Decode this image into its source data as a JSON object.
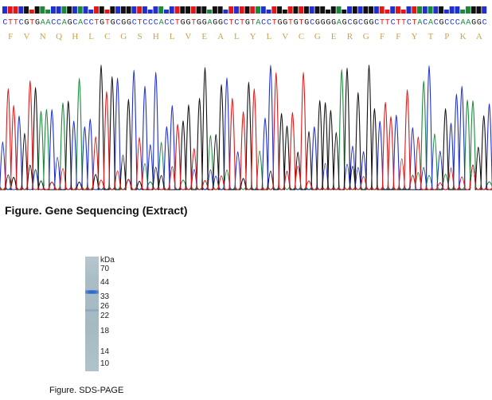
{
  "sequencing": {
    "bases": "CTTCGTGAACCAGCACCTGTGCGGCTCCCACCTGGTGGAGGCTCTGTACCTGGTGTGCGGGGAGCGCGGCTTCTTCTACACGCCCAAGGC",
    "amino_acids": [
      "F",
      "V",
      "N",
      "Q",
      "H",
      "L",
      "C",
      "G",
      "S",
      "H",
      "L",
      "V",
      "E",
      "A",
      "L",
      "Y",
      "L",
      "V",
      "C",
      "G",
      "E",
      "R",
      "G",
      "F",
      "F",
      "Y",
      "T",
      "P",
      "K",
      "A"
    ],
    "base_colors": {
      "A": "#1a8a3a",
      "C": "#1f2fd0",
      "G": "#111111",
      "T": "#e01818"
    },
    "caption": "Figure. Gene Sequencing (Extract)"
  },
  "gel": {
    "unit": "kDa",
    "markers": [
      "70",
      "44",
      "33",
      "26",
      "22",
      "18",
      "14",
      "10"
    ],
    "caption": "Figure. SDS-PAGE",
    "band_color": "#2e62c4"
  }
}
